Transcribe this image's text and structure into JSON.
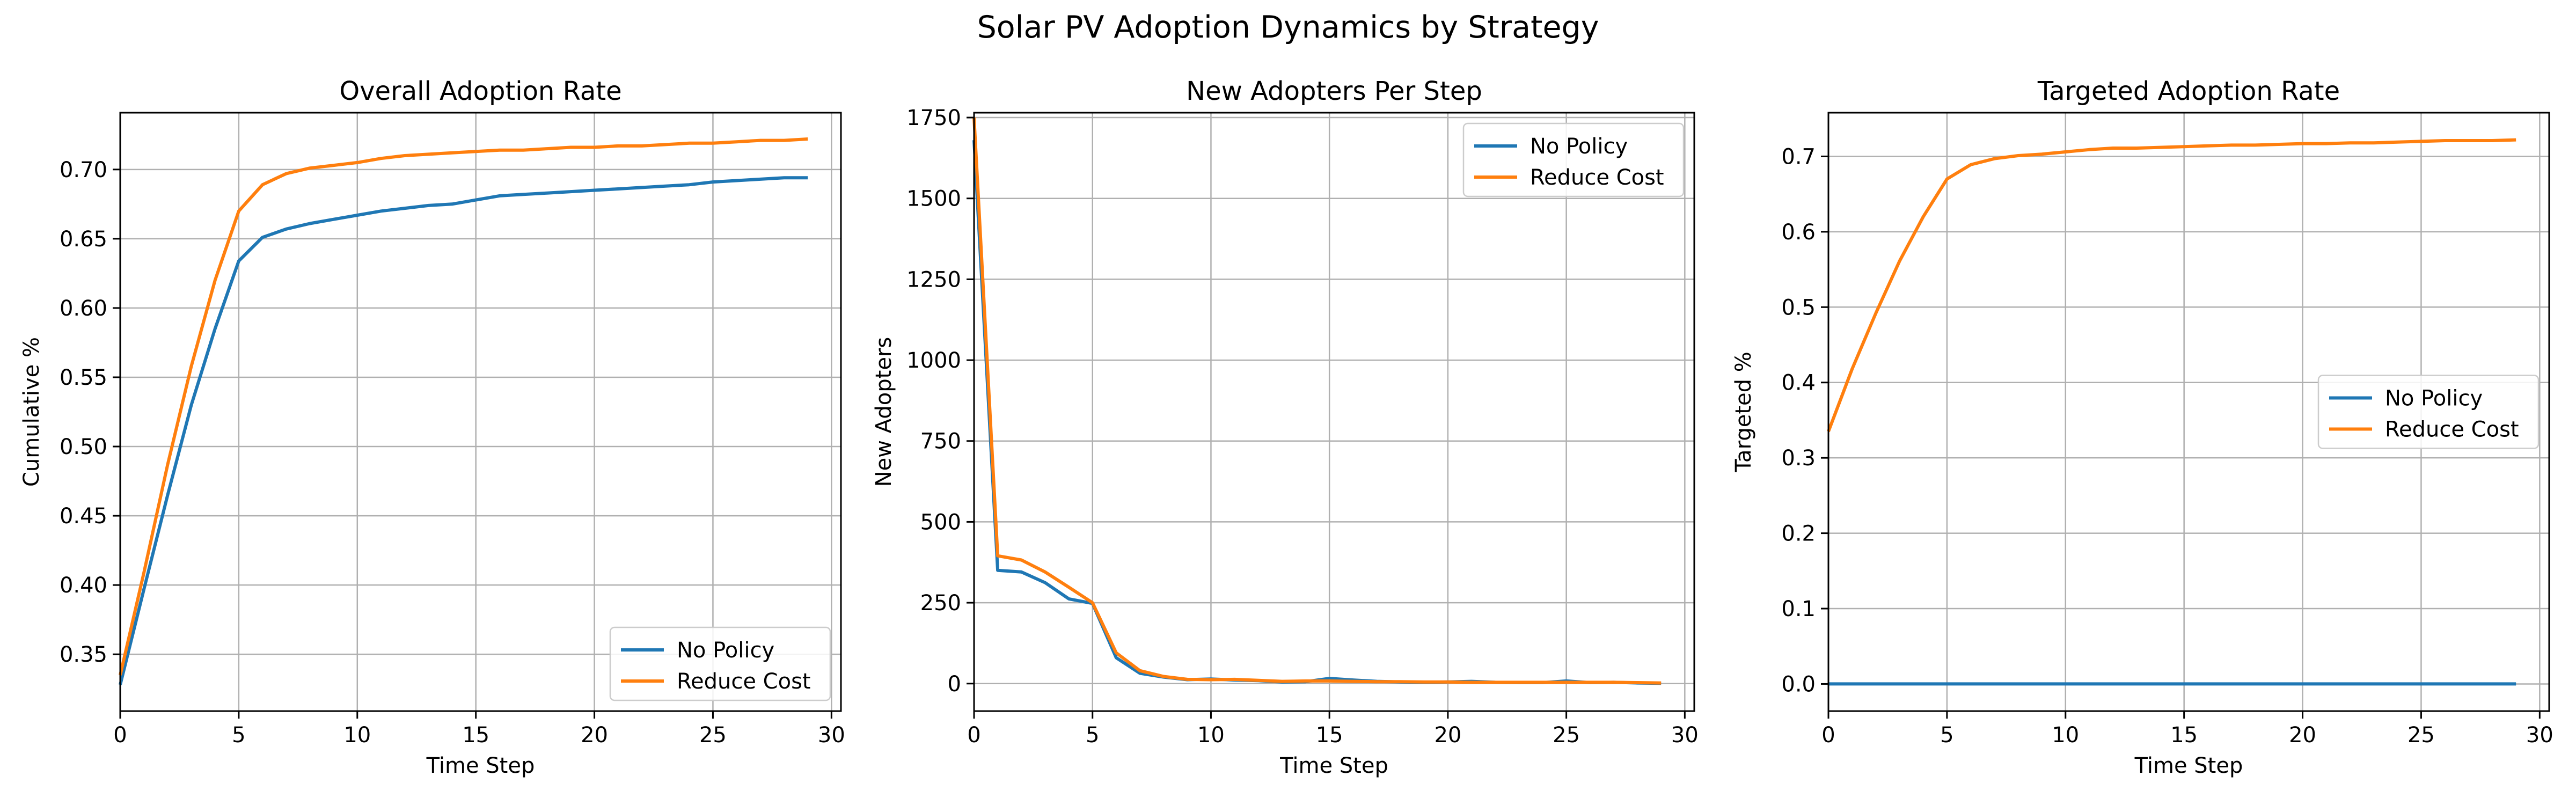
{
  "figure": {
    "suptitle": "Solar PV Adoption Dynamics by Strategy"
  },
  "colors": {
    "no_policy": "#1f77b4",
    "reduce_cost": "#ff7f0e",
    "grid": "#b0b0b0",
    "axes": "#000000",
    "legend_border": "#cccccc"
  },
  "chart_data": [
    {
      "type": "line",
      "title": "Overall Adoption Rate",
      "xlabel": "Time Step",
      "ylabel": "Cumulative %",
      "xlim": [
        0,
        30.4
      ],
      "ylim": [
        0.309,
        0.741
      ],
      "xticks": [
        0,
        5,
        10,
        15,
        20,
        25,
        30
      ],
      "yticks": [
        0.35,
        0.4,
        0.45,
        0.5,
        0.55,
        0.6,
        0.65,
        0.7
      ],
      "ytick_labels": [
        "0.35",
        "0.40",
        "0.45",
        "0.50",
        "0.55",
        "0.60",
        "0.65",
        "0.70"
      ],
      "grid": true,
      "legend": "bottom-right",
      "x": [
        0,
        1,
        2,
        3,
        4,
        5,
        6,
        7,
        8,
        9,
        10,
        11,
        12,
        13,
        14,
        15,
        16,
        17,
        18,
        19,
        20,
        21,
        22,
        23,
        24,
        25,
        26,
        27,
        28,
        29
      ],
      "series": [
        {
          "name": "No Policy",
          "color_key": "no_policy",
          "values": [
            0.328,
            0.397,
            0.465,
            0.53,
            0.585,
            0.634,
            0.651,
            0.657,
            0.661,
            0.664,
            0.667,
            0.67,
            0.672,
            0.674,
            0.675,
            0.678,
            0.681,
            0.682,
            0.683,
            0.684,
            0.685,
            0.686,
            0.687,
            0.688,
            0.689,
            0.691,
            0.692,
            0.693,
            0.694,
            0.694
          ]
        },
        {
          "name": "Reduce Cost",
          "color_key": "reduce_cost",
          "values": [
            0.335,
            0.409,
            0.487,
            0.558,
            0.62,
            0.67,
            0.689,
            0.697,
            0.701,
            0.703,
            0.705,
            0.708,
            0.71,
            0.711,
            0.712,
            0.713,
            0.714,
            0.714,
            0.715,
            0.716,
            0.716,
            0.717,
            0.717,
            0.718,
            0.719,
            0.719,
            0.72,
            0.721,
            0.721,
            0.722
          ]
        }
      ]
    },
    {
      "type": "line",
      "title": "New Adopters Per Step",
      "xlabel": "Time Step",
      "ylabel": "New Adopters",
      "xlim": [
        0,
        30.4
      ],
      "ylim": [
        -85,
        1765
      ],
      "xticks": [
        0,
        5,
        10,
        15,
        20,
        25,
        30
      ],
      "yticks": [
        0,
        250,
        500,
        750,
        1000,
        1250,
        1500,
        1750
      ],
      "ytick_labels": [
        "0",
        "250",
        "500",
        "750",
        "1000",
        "1250",
        "1500",
        "1750"
      ],
      "grid": true,
      "legend": "top-right",
      "x": [
        0,
        1,
        2,
        3,
        4,
        5,
        6,
        7,
        8,
        9,
        10,
        11,
        12,
        13,
        14,
        15,
        16,
        17,
        18,
        19,
        20,
        21,
        22,
        23,
        24,
        25,
        26,
        27,
        28,
        29
      ],
      "series": [
        {
          "name": "No Policy",
          "color_key": "no_policy",
          "values": [
            1680,
            350,
            345,
            312,
            262,
            248,
            80,
            32,
            20,
            12,
            14,
            11,
            9,
            5,
            6,
            16,
            11,
            7,
            5,
            4,
            5,
            7,
            4,
            3,
            3,
            8,
            3,
            4,
            2,
            1
          ]
        },
        {
          "name": "Reduce Cost",
          "color_key": "reduce_cost",
          "values": [
            1750,
            395,
            382,
            345,
            298,
            250,
            95,
            40,
            22,
            13,
            12,
            13,
            10,
            7,
            8,
            8,
            7,
            6,
            6,
            5,
            5,
            4,
            4,
            4,
            4,
            4,
            4,
            4,
            3,
            2
          ]
        }
      ]
    },
    {
      "type": "line",
      "title": "Targeted Adoption Rate",
      "xlabel": "Time Step",
      "ylabel": "Targeted %",
      "xlim": [
        0,
        30.4
      ],
      "ylim": [
        -0.036,
        0.758
      ],
      "xticks": [
        0,
        5,
        10,
        15,
        20,
        25,
        30
      ],
      "yticks": [
        0.0,
        0.1,
        0.2,
        0.3,
        0.4,
        0.5,
        0.6,
        0.7
      ],
      "ytick_labels": [
        "0.0",
        "0.1",
        "0.2",
        "0.3",
        "0.4",
        "0.5",
        "0.6",
        "0.7"
      ],
      "grid": true,
      "legend": "center-right",
      "x": [
        0,
        1,
        2,
        3,
        4,
        5,
        6,
        7,
        8,
        9,
        10,
        11,
        12,
        13,
        14,
        15,
        16,
        17,
        18,
        19,
        20,
        21,
        22,
        23,
        24,
        25,
        26,
        27,
        28,
        29
      ],
      "series": [
        {
          "name": "No Policy",
          "color_key": "no_policy",
          "values": [
            0,
            0,
            0,
            0,
            0,
            0,
            0,
            0,
            0,
            0,
            0,
            0,
            0,
            0,
            0,
            0,
            0,
            0,
            0,
            0,
            0,
            0,
            0,
            0,
            0,
            0,
            0,
            0,
            0,
            0
          ]
        },
        {
          "name": "Reduce Cost",
          "color_key": "reduce_cost",
          "values": [
            0.335,
            0.418,
            0.492,
            0.561,
            0.62,
            0.67,
            0.689,
            0.697,
            0.701,
            0.703,
            0.706,
            0.709,
            0.711,
            0.711,
            0.712,
            0.713,
            0.714,
            0.715,
            0.715,
            0.716,
            0.717,
            0.717,
            0.718,
            0.718,
            0.719,
            0.72,
            0.721,
            0.721,
            0.721,
            0.722
          ]
        }
      ]
    }
  ]
}
